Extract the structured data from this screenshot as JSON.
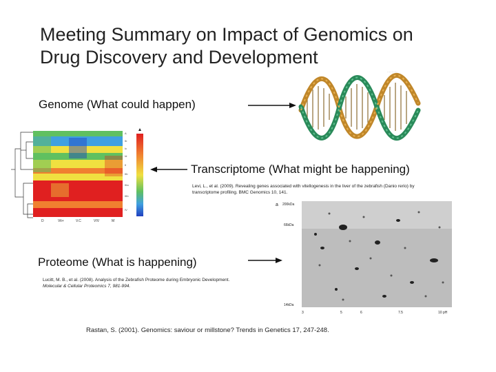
{
  "slide": {
    "title_line1": "Meeting Summary on Impact of Genomics on",
    "title_line2": "Drug Discovery and Development",
    "genome_label": "Genome (What could happen)",
    "transcriptome_label": "Transcriptome (What might be happening)",
    "proteome_label": "Proteome (What is happening)",
    "transcriptome_citation_line1": "Levi, L., et al. (2009). Revealing genes associated with vitellogenesis in the liver of the zebrafish (Danio rerio) by",
    "transcriptome_citation_line2": "transcriptome profiling. BMC Genomics 10, 141.",
    "proteome_citation_line1": "Lucitt, M. B., et al. (2008). Analysis of the Zebrafish Proteome during Embryonic Development.",
    "proteome_citation_line2": "Molecular & Cellular Proteomics 7, 981-994.",
    "footer_citation": "Rastan, S. (2001). Genomics: saviour or millstone? Trends in Genetics 17, 247-248."
  },
  "heatmap": {
    "column_labels": [
      "D",
      "Vit+",
      "V.C",
      "VIV",
      "M"
    ],
    "colors": [
      "#e02020",
      "#f08030",
      "#f0e040",
      "#60c060",
      "#40a0e0",
      "#2040c0"
    ]
  },
  "gel": {
    "panel_label": "a",
    "mw_labels": [
      "200kDa",
      "66kDa",
      "14kDa"
    ],
    "ph_labels": [
      "3",
      "5",
      "6",
      "7.5",
      "10 pH"
    ]
  }
}
